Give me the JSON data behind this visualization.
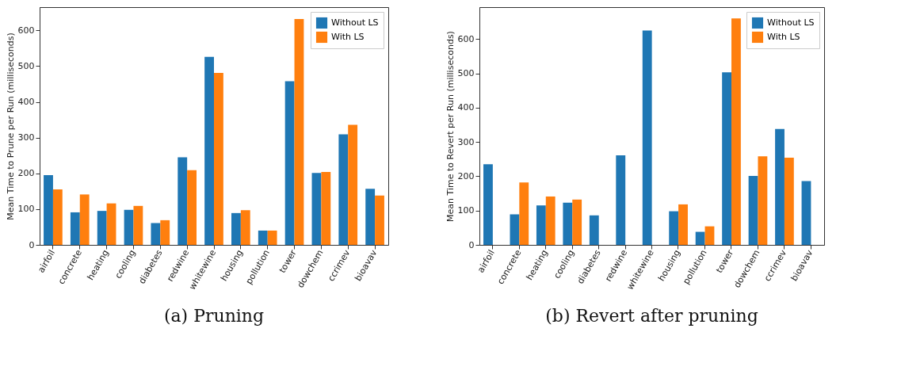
{
  "chart_data": [
    {
      "type": "bar",
      "title": "(a) Pruning",
      "ylabel": "Mean Time to Prune per Run (milliseconds)",
      "categories": [
        "airfoil",
        "concrete",
        "heating",
        "cooling",
        "diabetes",
        "redwine",
        "whitewine",
        "housing",
        "pollution",
        "tower",
        "dowchem",
        "ccrimev",
        "bioavav"
      ],
      "series": [
        {
          "name": "Without LS",
          "color": "#1f77b4",
          "values": [
            195,
            91,
            95,
            98,
            61,
            245,
            526,
            89,
            40,
            458,
            201,
            309,
            157
          ]
        },
        {
          "name": "With LS",
          "color": "#ff7f0e",
          "values": [
            155,
            141,
            116,
            109,
            69,
            209,
            481,
            97,
            40,
            632,
            204,
            336,
            138
          ]
        }
      ],
      "ylim": [
        0,
        665
      ],
      "yticks": [
        0,
        100,
        200,
        300,
        400,
        500,
        600
      ],
      "grid": false,
      "legend": "top right"
    },
    {
      "type": "bar",
      "title": "(b) Revert after pruning",
      "ylabel": "Mean Time to Revert per Run (milliseconds)",
      "categories": [
        "airfoil",
        "concrete",
        "heating",
        "cooling",
        "diabetes",
        "redwine",
        "whitewine",
        "housing",
        "pollution",
        "tower",
        "dowchem",
        "ccrimev",
        "bioavav"
      ],
      "series": [
        {
          "name": "Without LS",
          "color": "#1f77b4",
          "values": [
            235,
            89,
            115,
            123,
            86,
            261,
            625,
            98,
            38,
            503,
            201,
            338,
            186
          ]
        },
        {
          "name": "With LS",
          "color": "#ff7f0e",
          "values": [
            null,
            182,
            141,
            132,
            null,
            null,
            null,
            118,
            54,
            660,
            258,
            254,
            null
          ]
        }
      ],
      "ylim": [
        0,
        693
      ],
      "yticks": [
        0,
        100,
        200,
        300,
        400,
        500,
        600
      ],
      "grid": false,
      "legend": "top right"
    }
  ]
}
